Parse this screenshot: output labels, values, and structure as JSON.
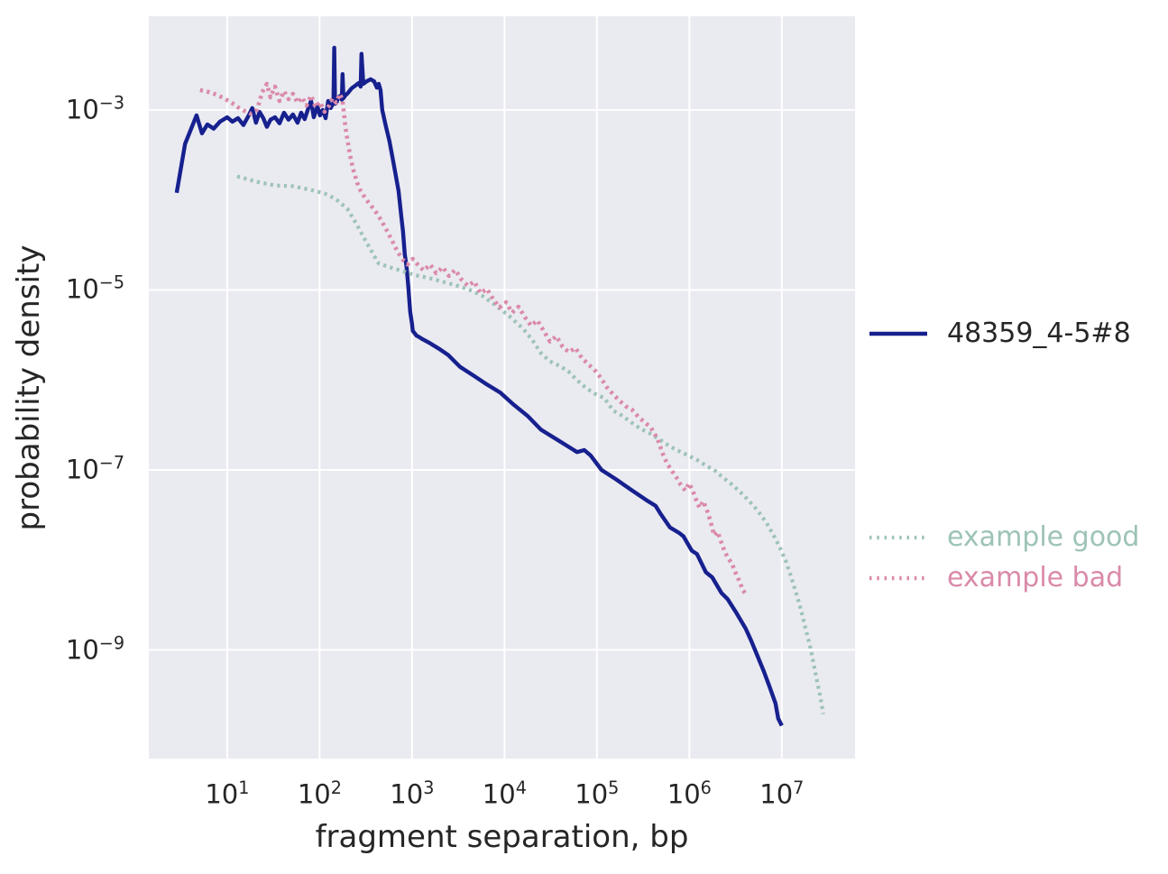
{
  "figure": {
    "background": "#ffffff",
    "axes_background": "#eaeaf1",
    "grid_color": "#ffffff",
    "text_color": "#262626"
  },
  "chart_data": {
    "type": "line",
    "title": "",
    "xlabel": "fragment separation, bp",
    "ylabel": "probability density",
    "xscale": "log",
    "yscale": "log",
    "xlim": [
      1.42,
      62000000
    ],
    "ylim": [
      6.2e-11,
      0.011
    ],
    "grid": true,
    "legend_position": "right-outside",
    "x_tick_values": [
      10,
      100,
      1000,
      10000,
      100000,
      1000000,
      10000000
    ],
    "x_tick_exponents": [
      1,
      2,
      3,
      4,
      5,
      6,
      7
    ],
    "y_tick_values": [
      0.001,
      1e-05,
      1e-07,
      1e-09
    ],
    "y_tick_exponents": [
      -3,
      -5,
      -7,
      -9
    ],
    "series": [
      {
        "name": "48359_4-5#8",
        "color": "#16208e",
        "label_color": "#262626",
        "linestyle": "solid",
        "linewidth": 4.4,
        "points": [
          [
            2.84,
            0.00012
          ],
          [
            3.5,
            0.00042
          ],
          [
            4.66,
            0.00087
          ],
          [
            5.33,
            0.00055
          ],
          [
            6.1,
            0.00069
          ],
          [
            7.14,
            0.00062
          ],
          [
            8.36,
            0.00074
          ],
          [
            10,
            0.00083
          ],
          [
            11.4,
            0.00074
          ],
          [
            13.1,
            0.00081
          ],
          [
            15,
            0.00068
          ],
          [
            17.1,
            0.00087
          ],
          [
            18.7,
            0.00105
          ],
          [
            20.5,
            0.00072
          ],
          [
            22.4,
            0.00095
          ],
          [
            24.6,
            0.00081
          ],
          [
            26.9,
            0.00065
          ],
          [
            29.4,
            0.00078
          ],
          [
            32.9,
            0.00083
          ],
          [
            36.8,
            0.00071
          ],
          [
            41.2,
            0.00093
          ],
          [
            46.1,
            0.00078
          ],
          [
            51.5,
            0.00089
          ],
          [
            57.7,
            0.00072
          ],
          [
            63.1,
            0.00093
          ],
          [
            69,
            0.00079
          ],
          [
            75.5,
            0.00105
          ],
          [
            80.8,
            0.00126
          ],
          [
            86.4,
            0.00083
          ],
          [
            94.6,
            0.0011
          ],
          [
            101,
            0.00087
          ],
          [
            108,
            0.001
          ],
          [
            116,
            0.00081
          ],
          [
            124,
            0.00126
          ],
          [
            132,
            0.00105
          ],
          [
            138,
            0.00115
          ],
          [
            141,
            0.0012
          ],
          [
            144,
            0.0049
          ],
          [
            147,
            0.00117
          ],
          [
            152,
            0.0012
          ],
          [
            160,
            0.00138
          ],
          [
            170,
            0.00145
          ],
          [
            174,
            0.0013
          ],
          [
            177,
            0.0025
          ],
          [
            181,
            0.00135
          ],
          [
            190,
            0.00145
          ],
          [
            203,
            0.00155
          ],
          [
            222,
            0.00174
          ],
          [
            243,
            0.00186
          ],
          [
            266,
            0.002
          ],
          [
            278,
            0.00182
          ],
          [
            284,
            0.0042
          ],
          [
            297,
            0.00195
          ],
          [
            325,
            0.00209
          ],
          [
            356,
            0.00219
          ],
          [
            389,
            0.00208
          ],
          [
            417,
            0.00177
          ],
          [
            436,
            0.00195
          ],
          [
            456,
            0.00166
          ],
          [
            476,
            0.001
          ],
          [
            521,
            0.00066
          ],
          [
            570,
            0.00045
          ],
          [
            610,
            0.00031
          ],
          [
            653,
            0.00021
          ],
          [
            714,
            0.000126
          ],
          [
            764,
            6.6e-05
          ],
          [
            798,
            4.5e-05
          ],
          [
            835,
            2.48e-05
          ],
          [
            873,
            1.79e-05
          ],
          [
            914,
            1.06e-05
          ],
          [
            955,
            5.7e-06
          ],
          [
            1000,
            4.2e-06
          ],
          [
            1020,
            3.5e-06
          ],
          [
            1120,
            3.1e-06
          ],
          [
            1200,
            2.99e-06
          ],
          [
            1280,
            2.86e-06
          ],
          [
            1570,
            2.55e-06
          ],
          [
            1960,
            2.22e-06
          ],
          [
            2460,
            1.89e-06
          ],
          [
            3290,
            1.4e-06
          ],
          [
            4610,
            1.12e-06
          ],
          [
            6460,
            8.9e-07
          ],
          [
            9040,
            7.2e-07
          ],
          [
            12600,
            5.3e-07
          ],
          [
            17700,
            4e-07
          ],
          [
            24800,
            2.8e-07
          ],
          [
            38900,
            2.1e-07
          ],
          [
            61000,
            1.58e-07
          ],
          [
            73000,
            1.66e-07
          ],
          [
            85500,
            1.45e-07
          ],
          [
            112000,
            1e-07
          ],
          [
            160000,
            7.9e-08
          ],
          [
            235000,
            6e-08
          ],
          [
            344000,
            4.6e-08
          ],
          [
            431000,
            4e-08
          ],
          [
            493000,
            3.2e-08
          ],
          [
            617000,
            2.3e-08
          ],
          [
            772000,
            2e-08
          ],
          [
            864000,
            1.83e-08
          ],
          [
            1060000,
            1.27e-08
          ],
          [
            1210000,
            1.16e-08
          ],
          [
            1510000,
            7.3e-09
          ],
          [
            1770000,
            6.4e-09
          ],
          [
            2220000,
            4.3e-09
          ],
          [
            2600000,
            3.66e-09
          ],
          [
            3250000,
            2.54e-09
          ],
          [
            4070000,
            1.72e-09
          ],
          [
            4660000,
            1.27e-09
          ],
          [
            5450000,
            8.6e-10
          ],
          [
            6380000,
            5.8e-10
          ],
          [
            7300000,
            4e-10
          ],
          [
            8550000,
            2.55e-10
          ],
          [
            9140000,
            1.73e-10
          ],
          [
            10000000,
            1.44e-10
          ]
        ]
      },
      {
        "name": "example good",
        "color": "#9dc3b7",
        "label_color": "#9dc3b7",
        "linestyle": "dotted",
        "linewidth": 4.2,
        "points": [
          [
            12.8,
            0.000183
          ],
          [
            21,
            0.000159
          ],
          [
            32.9,
            0.000145
          ],
          [
            51.5,
            0.000142
          ],
          [
            80.8,
            0.000129
          ],
          [
            113,
            0.000118
          ],
          [
            148,
            0.000103
          ],
          [
            199,
            8e-05
          ],
          [
            248,
            5.5e-05
          ],
          [
            311,
            3.58e-05
          ],
          [
            372,
            2.6e-05
          ],
          [
            436,
            1.97e-05
          ],
          [
            570,
            1.79e-05
          ],
          [
            764,
            1.64e-05
          ],
          [
            1070,
            1.46e-05
          ],
          [
            1500,
            1.36e-05
          ],
          [
            2100,
            1.24e-05
          ],
          [
            2940,
            1.13e-05
          ],
          [
            4120,
            1.01e-05
          ],
          [
            5770,
            8.6e-06
          ],
          [
            8080,
            6.7e-06
          ],
          [
            11300,
            5.1e-06
          ],
          [
            15900,
            3.7e-06
          ],
          [
            19900,
            2.8e-06
          ],
          [
            24800,
            1.98e-06
          ],
          [
            31100,
            1.61e-06
          ],
          [
            38900,
            1.44e-06
          ],
          [
            48800,
            1.25e-06
          ],
          [
            61000,
            9.95e-07
          ],
          [
            76400,
            8.1e-07
          ],
          [
            95500,
            7e-07
          ],
          [
            120000,
            6.3e-07
          ],
          [
            150000,
            4.55e-07
          ],
          [
            188000,
            4e-07
          ],
          [
            235000,
            3.38e-07
          ],
          [
            294000,
            2.88e-07
          ],
          [
            368000,
            2.57e-07
          ],
          [
            493000,
            2.13e-07
          ],
          [
            617000,
            1.82e-07
          ],
          [
            772000,
            1.62e-07
          ],
          [
            966000,
            1.45e-07
          ],
          [
            1210000,
            1.29e-07
          ],
          [
            1510000,
            1.12e-07
          ],
          [
            1900000,
            9.8e-08
          ],
          [
            2220000,
            8.5e-08
          ],
          [
            2780000,
            7.1e-08
          ],
          [
            3480000,
            5.8e-08
          ],
          [
            4360000,
            4.6e-08
          ],
          [
            5450000,
            3.56e-08
          ],
          [
            6830000,
            2.58e-08
          ],
          [
            8170000,
            1.87e-08
          ],
          [
            9560000,
            1.36e-08
          ],
          [
            11200000,
            9.4e-09
          ],
          [
            12800000,
            6.2e-09
          ],
          [
            14600000,
            4e-09
          ],
          [
            16400000,
            2.6e-09
          ],
          [
            18300000,
            1.64e-09
          ],
          [
            20500000,
            1.04e-09
          ],
          [
            22400000,
            6.5e-10
          ],
          [
            24500000,
            4.1e-10
          ],
          [
            26300000,
            2.9e-10
          ],
          [
            28100000,
            1.94e-10
          ]
        ]
      },
      {
        "name": "example bad",
        "color": "#da8aa9",
        "label_color": "#da8aa9",
        "linestyle": "dotted",
        "linewidth": 4.6,
        "points": [
          [
            5.09,
            0.00166
          ],
          [
            5.83,
            0.00162
          ],
          [
            6.82,
            0.00155
          ],
          [
            7.99,
            0.00145
          ],
          [
            9.56,
            0.00132
          ],
          [
            11.2,
            0.0012
          ],
          [
            13.1,
            0.00107
          ],
          [
            15.3,
            0.00098
          ],
          [
            17.9,
            0.00091
          ],
          [
            21,
            0.001
          ],
          [
            24,
            0.00158
          ],
          [
            26.9,
            0.00195
          ],
          [
            29.4,
            0.00138
          ],
          [
            32.9,
            0.00182
          ],
          [
            36.8,
            0.00126
          ],
          [
            41.2,
            0.00162
          ],
          [
            46.1,
            0.00132
          ],
          [
            51.5,
            0.00151
          ],
          [
            57.7,
            0.0012
          ],
          [
            64.6,
            0.00138
          ],
          [
            72.3,
            0.00112
          ],
          [
            80.8,
            0.00145
          ],
          [
            90.4,
            0.00107
          ],
          [
            101,
            0.00123
          ],
          [
            113,
            0.000955
          ],
          [
            127,
            0.00112
          ],
          [
            138,
            0.00135
          ],
          [
            151,
            0.0012
          ],
          [
            166,
            0.00151
          ],
          [
            177,
            0.00126
          ],
          [
            190,
            0.00066
          ],
          [
            203,
            0.00042
          ],
          [
            217,
            0.00029
          ],
          [
            232,
            0.000215
          ],
          [
            254,
            0.000156
          ],
          [
            278,
            0.000126
          ],
          [
            311,
            0.000105
          ],
          [
            348,
            9e-05
          ],
          [
            398,
            7.6e-05
          ],
          [
            456,
            6.1e-05
          ],
          [
            521,
            4.8e-05
          ],
          [
            597,
            3.66e-05
          ],
          [
            682,
            2.78e-05
          ],
          [
            781,
            2.21e-05
          ],
          [
            893,
            1.92e-05
          ],
          [
            1020,
            2.21e-05
          ],
          [
            1170,
            1.88e-05
          ],
          [
            1340,
            1.64e-05
          ],
          [
            1570,
            1.92e-05
          ],
          [
            1830,
            1.53e-05
          ],
          [
            2150,
            1.79e-05
          ],
          [
            2510,
            1.43e-05
          ],
          [
            2940,
            1.67e-05
          ],
          [
            3440,
            1.3e-05
          ],
          [
            4030,
            1.11e-05
          ],
          [
            4710,
            1.24e-05
          ],
          [
            5510,
            9.2e-06
          ],
          [
            6460,
            1.03e-05
          ],
          [
            7550,
            7.9e-06
          ],
          [
            8830,
            6.4e-06
          ],
          [
            10400,
            7.3e-06
          ],
          [
            12100,
            5.6e-06
          ],
          [
            14200,
            6.5e-06
          ],
          [
            16600,
            5e-06
          ],
          [
            19400,
            4e-06
          ],
          [
            22700,
            4.6e-06
          ],
          [
            26600,
            3.5e-06
          ],
          [
            31100,
            2.67e-06
          ],
          [
            36400,
            3.06e-06
          ],
          [
            42600,
            2.33e-06
          ],
          [
            49900,
            2.03e-06
          ],
          [
            58400,
            2.27e-06
          ],
          [
            68200,
            1.77e-06
          ],
          [
            79800,
            1.5e-06
          ],
          [
            93500,
            1.31e-06
          ],
          [
            109000,
            1.07e-06
          ],
          [
            128000,
            8.3e-07
          ],
          [
            150000,
            6.9e-07
          ],
          [
            175000,
            5.9e-07
          ],
          [
            205000,
            5.1e-07
          ],
          [
            240000,
            4.66e-07
          ],
          [
            281000,
            3.88e-07
          ],
          [
            329000,
            3.38e-07
          ],
          [
            385000,
            2.94e-07
          ],
          [
            451000,
            2.23e-07
          ],
          [
            515000,
            1.51e-07
          ],
          [
            577000,
            1.17e-07
          ],
          [
            646000,
            9.8e-08
          ],
          [
            722000,
            8.3e-08
          ],
          [
            808000,
            6.8e-08
          ],
          [
            904000,
            5.9e-08
          ],
          [
            989000,
            7.1e-08
          ],
          [
            1080000,
            6e-08
          ],
          [
            1180000,
            4.7e-08
          ],
          [
            1290000,
            3.8e-08
          ],
          [
            1420000,
            4.5e-08
          ],
          [
            1550000,
            3.56e-08
          ],
          [
            1690000,
            2.7e-08
          ],
          [
            1850000,
            1.87e-08
          ],
          [
            2030000,
            2.05e-08
          ],
          [
            2220000,
            1.56e-08
          ],
          [
            2430000,
            1.21e-08
          ],
          [
            2660000,
            1.03e-08
          ],
          [
            2900000,
            9e-09
          ],
          [
            3180000,
            7.1e-09
          ],
          [
            3480000,
            5.8e-09
          ],
          [
            3800000,
            4.6e-09
          ],
          [
            4170000,
            4e-09
          ]
        ]
      }
    ]
  }
}
